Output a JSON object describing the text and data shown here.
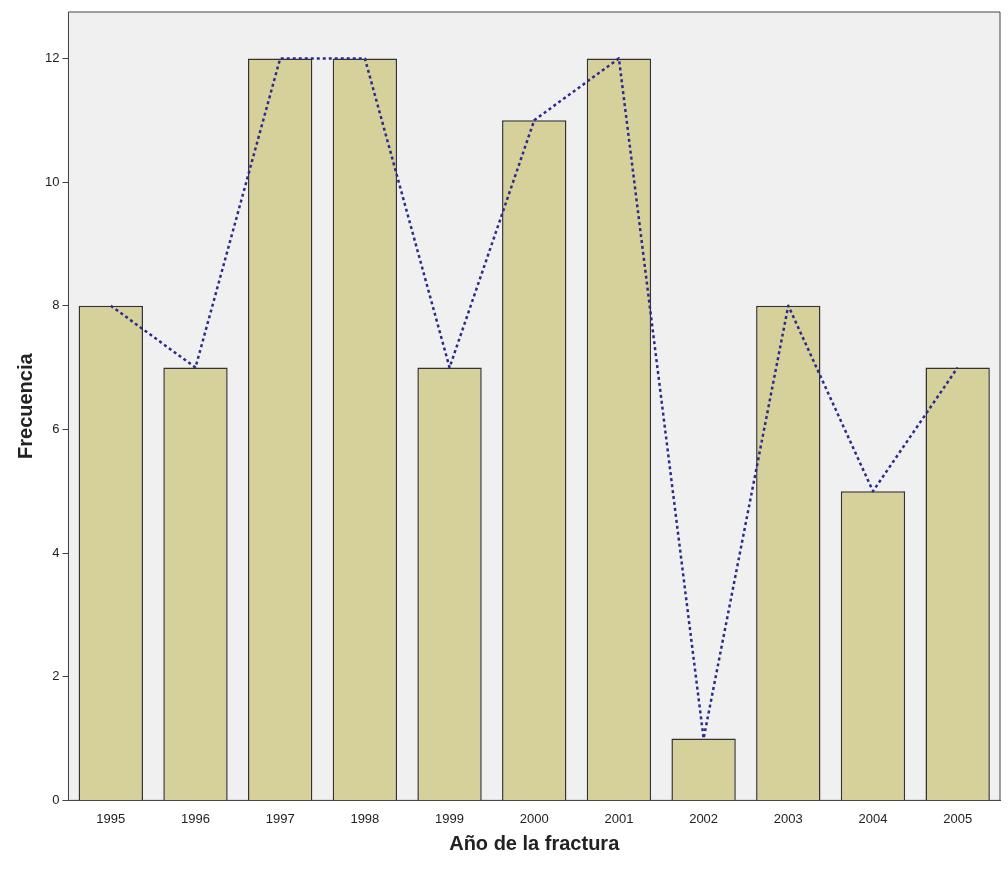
{
  "chart_data": {
    "type": "bar",
    "xlabel": "Año de la fractura",
    "ylabel": "Frecuencia",
    "categories": [
      "1995",
      "1996",
      "1997",
      "1998",
      "1999",
      "2000",
      "2001",
      "2002",
      "2003",
      "2004",
      "2005"
    ],
    "series": [
      {
        "color": "#d6d09a",
        "values": [
          8,
          7,
          12,
          12,
          7,
          11,
          12,
          1,
          8,
          5,
          7
        ]
      },
      {
        "type": "line",
        "color": "#2b2b8c",
        "line_style": "dotted",
        "marker": "none",
        "values": [
          8,
          7,
          12,
          12,
          7,
          11,
          12,
          1,
          8,
          5,
          7
        ]
      }
    ],
    "ylim": [
      0,
      12.75
    ],
    "yticks": [
      0,
      2,
      4,
      6,
      8,
      10,
      12
    ],
    "grid": false,
    "legend": false
  }
}
